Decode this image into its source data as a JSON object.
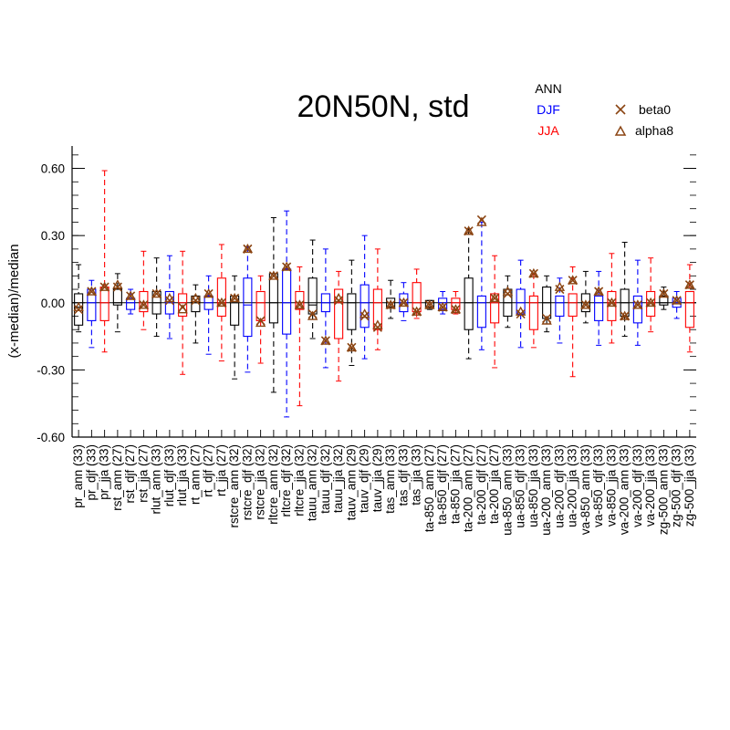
{
  "chart_data": {
    "type": "box",
    "title": "20N50N, std",
    "ylabel": "(x-median)/median",
    "xlabel": "",
    "ylim": [
      -0.6,
      0.7
    ],
    "yticks": [
      -0.6,
      -0.3,
      0.0,
      0.3,
      0.6
    ],
    "ytick_labels": [
      "-0.60",
      "-0.30",
      "0.00",
      "0.30",
      "0.60"
    ],
    "season_legend": [
      {
        "name": "ANN",
        "color": "#000000"
      },
      {
        "name": "DJF",
        "color": "#0000ff"
      },
      {
        "name": "JJA",
        "color": "#ff0000"
      }
    ],
    "marker_legend": [
      {
        "name": "beta0",
        "symbol": "x",
        "color": "#8b4513"
      },
      {
        "name": "alpha8",
        "symbol": "triangle",
        "color": "#8b4513"
      }
    ],
    "categories": [
      "pr_ann (33)",
      "pr_djf (33)",
      "pr_jja (33)",
      "rst_ann (27)",
      "rst_djf (27)",
      "rst_jja (27)",
      "rlut_ann (33)",
      "rlut_djf (33)",
      "rlut_jja (33)",
      "rt_ann (27)",
      "rt_djf (27)",
      "rt_jja (27)",
      "rstcre_ann (32)",
      "rstcre_djf (32)",
      "rstcre_jja (32)",
      "rltcre_ann (32)",
      "rltcre_djf (32)",
      "rltcre_jja (32)",
      "tauu_ann (32)",
      "tauu_djf (32)",
      "tauu_jja (32)",
      "tauv_ann (29)",
      "tauv_djf (29)",
      "tauv_jja (29)",
      "tas_ann (33)",
      "tas_djf (33)",
      "tas_jja (33)",
      "ta-850_ann (27)",
      "ta-850_djf (27)",
      "ta-850_jja (27)",
      "ta-200_ann (27)",
      "ta-200_djf (27)",
      "ta-200_jja (27)",
      "ua-850_ann (33)",
      "ua-850_djf (33)",
      "ua-850_jja (33)",
      "ua-200_ann (33)",
      "ua-200_djf (33)",
      "ua-200_jja (33)",
      "va-850_ann (33)",
      "va-850_djf (33)",
      "va-850_jja (33)",
      "va-200_ann (33)",
      "va-200_djf (33)",
      "va-200_jja (33)",
      "zg-500_ann (33)",
      "zg-500_djf (33)",
      "zg-500_jja (33)"
    ],
    "boxes": [
      {
        "wlo": -0.13,
        "q1": -0.1,
        "med": -0.02,
        "q3": 0.04,
        "whi": 0.17
      },
      {
        "wlo": -0.2,
        "q1": -0.08,
        "med": 0.0,
        "q3": 0.06,
        "whi": 0.1
      },
      {
        "wlo": -0.22,
        "q1": -0.08,
        "med": 0.0,
        "q3": 0.07,
        "whi": 0.59
      },
      {
        "wlo": -0.13,
        "q1": -0.01,
        "med": 0.0,
        "q3": 0.06,
        "whi": 0.13
      },
      {
        "wlo": -0.05,
        "q1": -0.03,
        "med": 0.0,
        "q3": 0.02,
        "whi": 0.06
      },
      {
        "wlo": -0.12,
        "q1": -0.04,
        "med": 0.0,
        "q3": 0.05,
        "whi": 0.23
      },
      {
        "wlo": -0.15,
        "q1": -0.05,
        "med": 0.0,
        "q3": 0.05,
        "whi": 0.2
      },
      {
        "wlo": -0.16,
        "q1": -0.05,
        "med": 0.0,
        "q3": 0.05,
        "whi": 0.21
      },
      {
        "wlo": -0.32,
        "q1": -0.06,
        "med": 0.0,
        "q3": 0.04,
        "whi": 0.23
      },
      {
        "wlo": -0.18,
        "q1": -0.04,
        "med": 0.0,
        "q3": 0.03,
        "whi": 0.08
      },
      {
        "wlo": -0.23,
        "q1": -0.03,
        "med": 0.0,
        "q3": 0.03,
        "whi": 0.12
      },
      {
        "wlo": -0.26,
        "q1": -0.06,
        "med": 0.0,
        "q3": 0.11,
        "whi": 0.26
      },
      {
        "wlo": -0.34,
        "q1": -0.1,
        "med": 0.0,
        "q3": 0.03,
        "whi": 0.12
      },
      {
        "wlo": -0.31,
        "q1": -0.15,
        "med": -0.01,
        "q3": 0.11,
        "whi": 0.25
      },
      {
        "wlo": -0.27,
        "q1": -0.08,
        "med": 0.0,
        "q3": 0.05,
        "whi": 0.12
      },
      {
        "wlo": -0.4,
        "q1": -0.09,
        "med": 0.0,
        "q3": 0.13,
        "whi": 0.38
      },
      {
        "wlo": -0.51,
        "q1": -0.14,
        "med": 0.0,
        "q3": 0.15,
        "whi": 0.41
      },
      {
        "wlo": -0.46,
        "q1": -0.03,
        "med": 0.0,
        "q3": 0.05,
        "whi": 0.16
      },
      {
        "wlo": -0.16,
        "q1": -0.05,
        "med": -0.01,
        "q3": 0.11,
        "whi": 0.28
      },
      {
        "wlo": -0.29,
        "q1": -0.04,
        "med": 0.0,
        "q3": 0.04,
        "whi": 0.24
      },
      {
        "wlo": -0.35,
        "q1": -0.16,
        "med": 0.0,
        "q3": 0.06,
        "whi": 0.14
      },
      {
        "wlo": -0.28,
        "q1": -0.12,
        "med": 0.0,
        "q3": 0.04,
        "whi": 0.19
      },
      {
        "wlo": -0.25,
        "q1": -0.11,
        "med": 0.0,
        "q3": 0.08,
        "whi": 0.3
      },
      {
        "wlo": -0.21,
        "q1": -0.12,
        "med": 0.0,
        "q3": 0.06,
        "whi": 0.24
      },
      {
        "wlo": -0.07,
        "q1": -0.02,
        "med": 0.0,
        "q3": 0.02,
        "whi": 0.1
      },
      {
        "wlo": -0.08,
        "q1": -0.04,
        "med": 0.0,
        "q3": 0.04,
        "whi": 0.09
      },
      {
        "wlo": -0.07,
        "q1": -0.04,
        "med": 0.0,
        "q3": 0.09,
        "whi": 0.15
      },
      {
        "wlo": -0.03,
        "q1": -0.02,
        "med": 0.0,
        "q3": 0.01,
        "whi": 0.01
      },
      {
        "wlo": -0.05,
        "q1": -0.03,
        "med": 0.0,
        "q3": 0.02,
        "whi": 0.05
      },
      {
        "wlo": -0.05,
        "q1": -0.03,
        "med": 0.0,
        "q3": 0.02,
        "whi": 0.05
      },
      {
        "wlo": -0.25,
        "q1": -0.12,
        "med": 0.0,
        "q3": 0.11,
        "whi": 0.33
      },
      {
        "wlo": -0.21,
        "q1": -0.11,
        "med": 0.0,
        "q3": 0.03,
        "whi": 0.36
      },
      {
        "wlo": -0.29,
        "q1": -0.09,
        "med": 0.0,
        "q3": 0.04,
        "whi": 0.21
      },
      {
        "wlo": -0.11,
        "q1": -0.06,
        "med": 0.0,
        "q3": 0.06,
        "whi": 0.12
      },
      {
        "wlo": -0.2,
        "q1": -0.05,
        "med": 0.0,
        "q3": 0.06,
        "whi": 0.19
      },
      {
        "wlo": -0.2,
        "q1": -0.12,
        "med": 0.0,
        "q3": 0.03,
        "whi": 0.13
      },
      {
        "wlo": -0.13,
        "q1": -0.07,
        "med": 0.0,
        "q3": 0.07,
        "whi": 0.12
      },
      {
        "wlo": -0.18,
        "q1": -0.06,
        "med": 0.0,
        "q3": 0.03,
        "whi": 0.11
      },
      {
        "wlo": -0.33,
        "q1": -0.06,
        "med": 0.0,
        "q3": 0.04,
        "whi": 0.16
      },
      {
        "wlo": -0.09,
        "q1": -0.04,
        "med": 0.0,
        "q3": 0.04,
        "whi": 0.14
      },
      {
        "wlo": -0.19,
        "q1": -0.08,
        "med": 0.0,
        "q3": 0.03,
        "whi": 0.14
      },
      {
        "wlo": -0.18,
        "q1": -0.08,
        "med": 0.0,
        "q3": 0.05,
        "whi": 0.22
      },
      {
        "wlo": -0.15,
        "q1": -0.06,
        "med": 0.0,
        "q3": 0.06,
        "whi": 0.27
      },
      {
        "wlo": -0.19,
        "q1": -0.09,
        "med": 0.0,
        "q3": 0.03,
        "whi": 0.19
      },
      {
        "wlo": -0.13,
        "q1": -0.06,
        "med": 0.0,
        "q3": 0.05,
        "whi": 0.2
      },
      {
        "wlo": -0.03,
        "q1": -0.01,
        "med": 0.0,
        "q3": 0.03,
        "whi": 0.07
      },
      {
        "wlo": -0.07,
        "q1": -0.02,
        "med": 0.0,
        "q3": 0.02,
        "whi": 0.05
      },
      {
        "wlo": -0.22,
        "q1": -0.11,
        "med": 0.0,
        "q3": 0.05,
        "whi": 0.17
      }
    ],
    "beta0": [
      -0.03,
      0.05,
      0.07,
      0.07,
      0.03,
      -0.01,
      0.04,
      0.01,
      -0.02,
      0.01,
      0.04,
      0.0,
      0.02,
      0.24,
      -0.08,
      0.12,
      0.16,
      -0.01,
      -0.05,
      -0.17,
      0.01,
      -0.2,
      -0.06,
      -0.11,
      -0.01,
      0.0,
      -0.04,
      -0.01,
      -0.02,
      -0.03,
      0.32,
      0.37,
      0.02,
      0.04,
      -0.05,
      0.13,
      -0.07,
      0.06,
      0.1,
      -0.01,
      0.05,
      0.0,
      -0.06,
      -0.01,
      0.0,
      0.04,
      0.01,
      0.08
    ],
    "alpha8": [
      -0.02,
      0.05,
      0.07,
      0.08,
      0.03,
      -0.01,
      0.04,
      0.02,
      -0.03,
      0.02,
      0.04,
      0.0,
      0.02,
      0.24,
      -0.09,
      0.12,
      0.16,
      -0.01,
      -0.06,
      -0.17,
      0.02,
      -0.2,
      -0.05,
      -0.1,
      -0.01,
      0.0,
      -0.04,
      -0.01,
      -0.02,
      -0.03,
      0.32,
      0.36,
      0.02,
      0.05,
      -0.04,
      0.13,
      -0.08,
      0.07,
      0.1,
      -0.01,
      0.05,
      0.0,
      -0.06,
      -0.01,
      0.0,
      0.04,
      0.01,
      0.08
    ],
    "grid": false
  }
}
